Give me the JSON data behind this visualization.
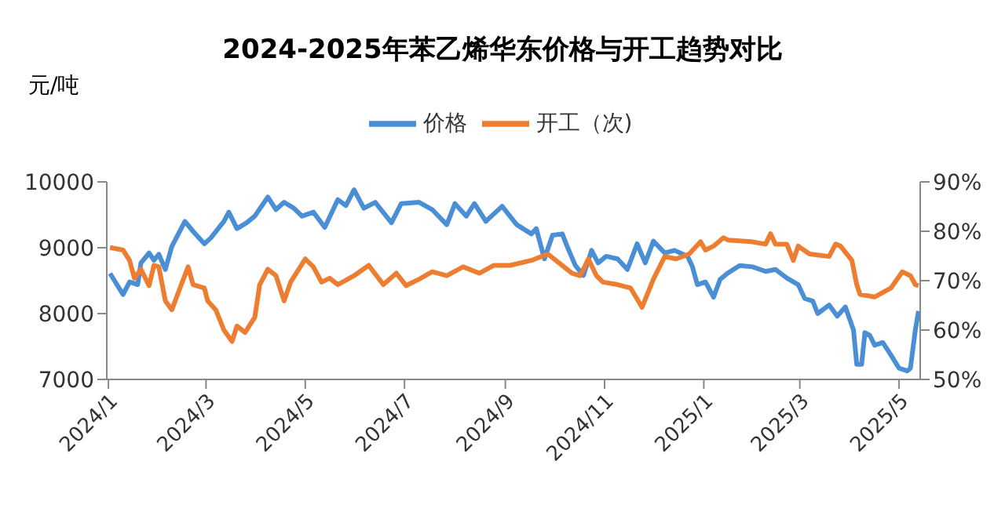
{
  "chart_data": {
    "type": "line",
    "title": "2024-2025年苯乙烯华东价格与开工趋势对比",
    "ylabel": "元/吨",
    "legend": "top",
    "grid": false,
    "marker": "none",
    "line_style": "solid",
    "xlim": [
      "2023-12-31",
      "2025-05-14"
    ],
    "xticks": [
      {
        "value": "2024-01-01",
        "label": "2024/1"
      },
      {
        "value": "2024-03-01",
        "label": "2024/3"
      },
      {
        "value": "2024-05-01",
        "label": "2024/5"
      },
      {
        "value": "2024-07-01",
        "label": "2024/7"
      },
      {
        "value": "2024-09-01",
        "label": "2024/9"
      },
      {
        "value": "2024-11-01",
        "label": "2024/11"
      },
      {
        "value": "2025-01-01",
        "label": "2025/1"
      },
      {
        "value": "2025-03-01",
        "label": "2025/3"
      },
      {
        "value": "2025-05-01",
        "label": "2025/5"
      }
    ],
    "ylim": [
      7000,
      10000
    ],
    "yticks": [
      7000,
      8000,
      9000,
      10000
    ],
    "y2lim": [
      50,
      90
    ],
    "y2ticks": [
      {
        "value": 50,
        "label": "50%"
      },
      {
        "value": 60,
        "label": "60%"
      },
      {
        "value": 70,
        "label": "70%"
      },
      {
        "value": 80,
        "label": "80%"
      },
      {
        "value": 90,
        "label": "90%"
      }
    ],
    "series": [
      {
        "name": "价格",
        "color": "#4a8fd6",
        "x": [
          "2024-01-02",
          "2024-01-10",
          "2024-01-14",
          "2024-01-19",
          "2024-01-21",
          "2024-01-26",
          "2024-01-29",
          "2024-02-01",
          "2024-02-05",
          "2024-02-09",
          "2024-02-17",
          "2024-02-22",
          "2024-02-29",
          "2024-03-04",
          "2024-03-12",
          "2024-03-15",
          "2024-03-20",
          "2024-03-26",
          "2024-03-31",
          "2024-04-08",
          "2024-04-13",
          "2024-04-18",
          "2024-04-24",
          "2024-04-29",
          "2024-05-06",
          "2024-05-13",
          "2024-05-21",
          "2024-05-26",
          "2024-05-31",
          "2024-06-06",
          "2024-06-13",
          "2024-06-23",
          "2024-06-29",
          "2024-07-10",
          "2024-07-18",
          "2024-07-27",
          "2024-08-01",
          "2024-08-08",
          "2024-08-13",
          "2024-08-20",
          "2024-08-30",
          "2024-09-08",
          "2024-09-17",
          "2024-09-20",
          "2024-09-25",
          "2024-09-30",
          "2024-10-06",
          "2024-10-09",
          "2024-10-14",
          "2024-10-19",
          "2024-10-24",
          "2024-10-28",
          "2024-11-02",
          "2024-11-09",
          "2024-11-15",
          "2024-11-21",
          "2024-11-26",
          "2024-12-01",
          "2024-12-08",
          "2024-12-14",
          "2024-12-22",
          "2024-12-25",
          "2024-12-28",
          "2025-01-02",
          "2025-01-07",
          "2025-01-11",
          "2025-01-16",
          "2025-01-23",
          "2025-01-31",
          "2025-02-08",
          "2025-02-14",
          "2025-02-21",
          "2025-02-28",
          "2025-03-04",
          "2025-03-09",
          "2025-03-12",
          "2025-03-19",
          "2025-03-24",
          "2025-03-29",
          "2025-04-03",
          "2025-04-05",
          "2025-04-08",
          "2025-04-10",
          "2025-04-13",
          "2025-04-16",
          "2025-04-21",
          "2025-04-26",
          "2025-05-01",
          "2025-05-06",
          "2025-05-08",
          "2025-05-11",
          "2025-05-13"
        ],
        "values": [
          8610,
          8290,
          8480,
          8440,
          8770,
          8920,
          8810,
          8900,
          8670,
          9020,
          9400,
          9250,
          9060,
          9150,
          9400,
          9540,
          9290,
          9380,
          9480,
          9770,
          9580,
          9690,
          9600,
          9480,
          9540,
          9310,
          9730,
          9640,
          9880,
          9600,
          9690,
          9380,
          9670,
          9690,
          9580,
          9350,
          9670,
          9480,
          9670,
          9400,
          9630,
          9350,
          9210,
          9290,
          8830,
          9190,
          9210,
          9020,
          8730,
          8580,
          8960,
          8770,
          8870,
          8830,
          8670,
          9060,
          8770,
          9100,
          8920,
          8960,
          8870,
          8710,
          8440,
          8480,
          8250,
          8520,
          8620,
          8730,
          8710,
          8640,
          8670,
          8540,
          8440,
          8230,
          8190,
          8000,
          8130,
          7960,
          8100,
          7750,
          7230,
          7230,
          7710,
          7670,
          7520,
          7560,
          7370,
          7170,
          7130,
          7170,
          7750,
          8040
        ]
      },
      {
        "name": "开工（次)",
        "color": "#ed7d31",
        "axis": "y2",
        "x": [
          "2024-01-02",
          "2024-01-10",
          "2024-01-14",
          "2024-01-17",
          "2024-01-21",
          "2024-01-26",
          "2024-01-29",
          "2024-02-01",
          "2024-02-05",
          "2024-02-09",
          "2024-02-14",
          "2024-02-19",
          "2024-02-22",
          "2024-02-29",
          "2024-03-02",
          "2024-03-07",
          "2024-03-12",
          "2024-03-17",
          "2024-03-20",
          "2024-03-25",
          "2024-03-31",
          "2024-04-03",
          "2024-04-08",
          "2024-04-13",
          "2024-04-18",
          "2024-04-22",
          "2024-05-01",
          "2024-05-06",
          "2024-05-11",
          "2024-05-16",
          "2024-05-21",
          "2024-05-31",
          "2024-06-09",
          "2024-06-18",
          "2024-06-26",
          "2024-07-02",
          "2024-07-10",
          "2024-07-18",
          "2024-07-27",
          "2024-08-06",
          "2024-08-16",
          "2024-08-25",
          "2024-09-04",
          "2024-09-17",
          "2024-09-27",
          "2024-10-04",
          "2024-10-12",
          "2024-10-17",
          "2024-10-22",
          "2024-10-27",
          "2024-10-31",
          "2024-11-09",
          "2024-11-17",
          "2024-11-24",
          "2024-12-01",
          "2024-12-08",
          "2024-12-15",
          "2024-12-23",
          "2024-12-30",
          "2025-01-02",
          "2025-01-07",
          "2025-01-13",
          "2025-01-16",
          "2025-01-30",
          "2025-02-08",
          "2025-02-11",
          "2025-02-14",
          "2025-02-21",
          "2025-02-25",
          "2025-02-28",
          "2025-03-07",
          "2025-03-19",
          "2025-03-23",
          "2025-03-26",
          "2025-04-02",
          "2025-04-05",
          "2025-04-07",
          "2025-04-16",
          "2025-04-26",
          "2025-05-03",
          "2025-05-08",
          "2025-05-11",
          "2025-05-13"
        ],
        "values": [
          76.7,
          76.2,
          74.1,
          70.5,
          72.3,
          69.0,
          73.1,
          72.8,
          65.9,
          64.1,
          68.5,
          72.8,
          69.2,
          68.5,
          65.9,
          64.1,
          60.0,
          57.7,
          60.8,
          59.5,
          62.6,
          69.2,
          72.3,
          71.0,
          65.9,
          69.7,
          74.4,
          72.8,
          69.7,
          70.5,
          69.2,
          71.0,
          73.1,
          69.2,
          71.5,
          69.0,
          70.3,
          71.8,
          71.0,
          72.8,
          71.5,
          73.1,
          73.1,
          74.1,
          75.4,
          73.6,
          71.5,
          71.0,
          74.4,
          71.0,
          69.7,
          69.2,
          68.5,
          64.6,
          70.3,
          74.9,
          74.4,
          75.4,
          77.9,
          76.2,
          77.0,
          78.7,
          78.2,
          77.9,
          77.4,
          79.5,
          77.4,
          77.4,
          74.1,
          77.0,
          75.4,
          74.9,
          77.4,
          77.0,
          74.1,
          69.2,
          67.2,
          66.7,
          68.5,
          71.8,
          71.0,
          69.2,
          69.0
        ]
      }
    ]
  }
}
